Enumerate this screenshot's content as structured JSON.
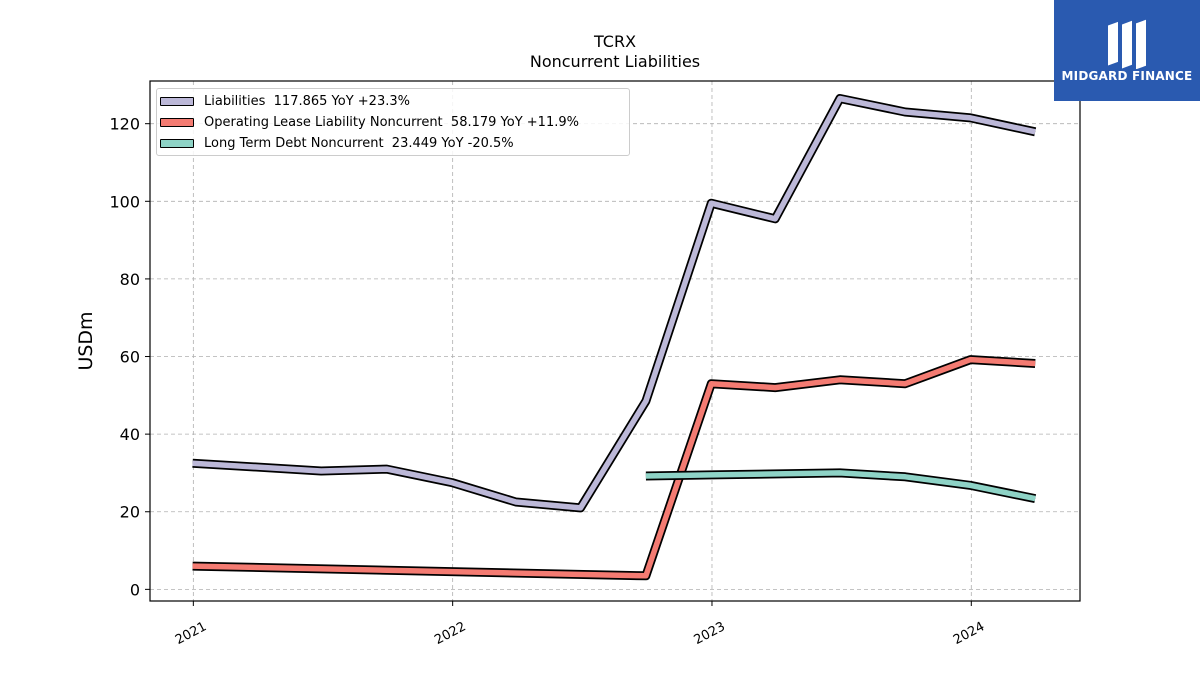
{
  "chart_data": {
    "type": "line",
    "title": "TCRX",
    "subtitle": "Noncurrent  Liabilities",
    "ylabel": "USDm",
    "xlabel": "",
    "ylim": [
      -3,
      131
    ],
    "xlim": [
      "2020-11-01",
      "2024-06-02"
    ],
    "yticks": [
      0,
      20,
      40,
      60,
      80,
      100,
      120
    ],
    "xticks": [
      {
        "label": "2021",
        "date": "2021-01-01"
      },
      {
        "label": "2022",
        "date": "2022-01-01"
      },
      {
        "label": "2023",
        "date": "2023-01-01"
      },
      {
        "label": "2024",
        "date": "2024-01-01"
      }
    ],
    "grid": true,
    "legend_position": "top-left",
    "series": [
      {
        "name": "Liabilities",
        "legend": "Liabilities  117.865 YoY +23.3%",
        "color": "#bcb8d8",
        "points": [
          [
            "2020-12-31",
            32.5
          ],
          [
            "2021-06-30",
            30.5
          ],
          [
            "2021-09-30",
            31.0
          ],
          [
            "2021-12-31",
            27.5
          ],
          [
            "2022-03-31",
            22.5
          ],
          [
            "2022-06-30",
            21.0
          ],
          [
            "2022-09-30",
            48.5
          ],
          [
            "2022-12-31",
            99.5
          ],
          [
            "2023-03-31",
            95.5
          ],
          [
            "2023-06-30",
            126.5
          ],
          [
            "2023-09-30",
            123.0
          ],
          [
            "2023-12-31",
            121.5
          ],
          [
            "2024-03-31",
            117.9
          ]
        ]
      },
      {
        "name": "Operating Lease Liability Noncurrent",
        "legend": "Operating Lease Liability Noncurrent  58.179 YoY +11.9%",
        "color": "#f47b72",
        "points": [
          [
            "2020-12-31",
            6.0
          ],
          [
            "2022-09-30",
            3.5
          ],
          [
            "2022-12-31",
            53.0
          ],
          [
            "2023-03-31",
            52.0
          ],
          [
            "2023-06-30",
            54.0
          ],
          [
            "2023-09-30",
            53.0
          ],
          [
            "2023-12-31",
            59.2
          ],
          [
            "2024-03-31",
            58.2
          ]
        ]
      },
      {
        "name": "Long Term Debt Noncurrent",
        "legend": "Long Term Debt Noncurrent  23.449 YoY -20.5%",
        "color": "#8ed3c6",
        "points": [
          [
            "2022-09-30",
            29.2
          ],
          [
            "2022-12-31",
            29.5
          ],
          [
            "2023-06-30",
            30.0
          ],
          [
            "2023-09-30",
            29.0
          ],
          [
            "2023-12-31",
            26.8
          ],
          [
            "2024-03-31",
            23.4
          ]
        ]
      }
    ]
  },
  "logo": {
    "text": "MIDGARD FINANCE",
    "background": "#2a5ab0"
  }
}
